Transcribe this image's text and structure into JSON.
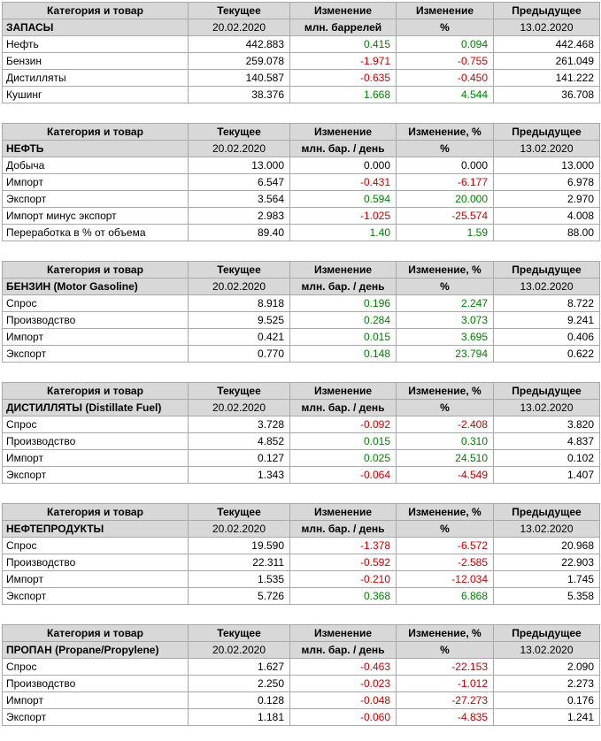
{
  "colors": {
    "positive": "#008000",
    "negative": "#cc0000",
    "neutral": "#000000",
    "header_background": "#d8d8d8",
    "grid_border": "#a9a9a9"
  },
  "chart_data": [
    {
      "type": "table",
      "name": "inventories",
      "columns": [
        "Категория и товар",
        "Текущее",
        "Изменение",
        "Изменение",
        "Предыдущее"
      ],
      "subheader": {
        "title": "ЗАПАСЫ",
        "current_date": "20.02.2020",
        "unit": "млн. баррелей",
        "percent": "%",
        "previous_date": "13.02.2020"
      },
      "rows": [
        [
          "Нефть",
          "442.883",
          "0.415",
          "0.094",
          "442.468"
        ],
        [
          "Бензин",
          "259.078",
          "-1.971",
          "-0.755",
          "261.049"
        ],
        [
          "Дистилляты",
          "140.587",
          "-0.635",
          "-0.450",
          "141.222"
        ],
        [
          "Кушинг",
          "38.376",
          "1.668",
          "4.544",
          "36.708"
        ]
      ]
    },
    {
      "type": "table",
      "name": "crude-oil",
      "columns": [
        "Категория и товар",
        "Текущее",
        "Изменение",
        "Изменение, %",
        "Предыдущее"
      ],
      "subheader": {
        "title": "НЕФТЬ",
        "current_date": "20.02.2020",
        "unit": "млн. бар. / день",
        "percent": "%",
        "previous_date": "13.02.2020"
      },
      "rows": [
        [
          "Добыча",
          "13.000",
          "0.000",
          "0.000",
          "13.000"
        ],
        [
          "Импорт",
          "6.547",
          "-0.431",
          "-6.177",
          "6.978"
        ],
        [
          "Экспорт",
          "3.564",
          "0.594",
          "20.000",
          "2.970"
        ],
        [
          "Импорт минус экспорт",
          "2.983",
          "-1.025",
          "-25.574",
          "4.008"
        ],
        [
          "Переработка в % от объема",
          "89.40",
          "1.40",
          "1.59",
          "88.00"
        ]
      ]
    },
    {
      "type": "table",
      "name": "gasoline",
      "columns": [
        "Категория и товар",
        "Текущее",
        "Изменение",
        "Изменение, %",
        "Предыдущее"
      ],
      "subheader": {
        "title": "БЕНЗИН (Motor Gasoline)",
        "current_date": "20.02.2020",
        "unit": "млн. бар. / день",
        "percent": "%",
        "previous_date": "13.02.2020"
      },
      "rows": [
        [
          "Спрос",
          "8.918",
          "0.196",
          "2.247",
          "8.722"
        ],
        [
          "Производство",
          "9.525",
          "0.284",
          "3.073",
          "9.241"
        ],
        [
          "Импорт",
          "0.421",
          "0.015",
          "3.695",
          "0.406"
        ],
        [
          "Экспорт",
          "0.770",
          "0.148",
          "23.794",
          "0.622"
        ]
      ]
    },
    {
      "type": "table",
      "name": "distillates",
      "columns": [
        "Категория и товар",
        "Текущее",
        "Изменение",
        "Изменение, %",
        "Предыдущее"
      ],
      "subheader": {
        "title": "ДИСТИЛЛЯТЫ (Distillate Fuel)",
        "current_date": "20.02.2020",
        "unit": "млн. бар. / день",
        "percent": "%",
        "previous_date": "13.02.2020"
      },
      "rows": [
        [
          "Спрос",
          "3.728",
          "-0.092",
          "-2.408",
          "3.820"
        ],
        [
          "Производство",
          "4.852",
          "0.015",
          "0.310",
          "4.837"
        ],
        [
          "Импорт",
          "0.127",
          "0.025",
          "24.510",
          "0.102"
        ],
        [
          "Экспорт",
          "1.343",
          "-0.064",
          "-4.549",
          "1.407"
        ]
      ]
    },
    {
      "type": "table",
      "name": "petroleum-products",
      "columns": [
        "Категория и товар",
        "Текущее",
        "Изменение",
        "Изменение, %",
        "Предыдущее"
      ],
      "subheader": {
        "title": "НЕФТЕПРОДУКТЫ",
        "current_date": "20.02.2020",
        "unit": "млн. бар. / день",
        "percent": "%",
        "previous_date": "13.02.2020"
      },
      "rows": [
        [
          "Спрос",
          "19.590",
          "-1.378",
          "-6.572",
          "20.968"
        ],
        [
          "Производство",
          "22.311",
          "-0.592",
          "-2.585",
          "22.903"
        ],
        [
          "Импорт",
          "1.535",
          "-0.210",
          "-12.034",
          "1.745"
        ],
        [
          "Экспорт",
          "5.726",
          "0.368",
          "6.868",
          "5.358"
        ]
      ]
    },
    {
      "type": "table",
      "name": "propane",
      "columns": [
        "Категория и товар",
        "Текущее",
        "Изменение",
        "Изменение, %",
        "Предыдущее"
      ],
      "subheader": {
        "title": "ПРОПАН (Propane/Propylene)",
        "current_date": "20.02.2020",
        "unit": "млн. бар. / день",
        "percent": "%",
        "previous_date": "13.02.2020"
      },
      "rows": [
        [
          "Спрос",
          "1.627",
          "-0.463",
          "-22.153",
          "2.090"
        ],
        [
          "Производство",
          "2.250",
          "-0.023",
          "-1.012",
          "2.273"
        ],
        [
          "Импорт",
          "0.128",
          "-0.048",
          "-27.273",
          "0.176"
        ],
        [
          "Экспорт",
          "1.181",
          "-0.060",
          "-4.835",
          "1.241"
        ]
      ]
    }
  ]
}
